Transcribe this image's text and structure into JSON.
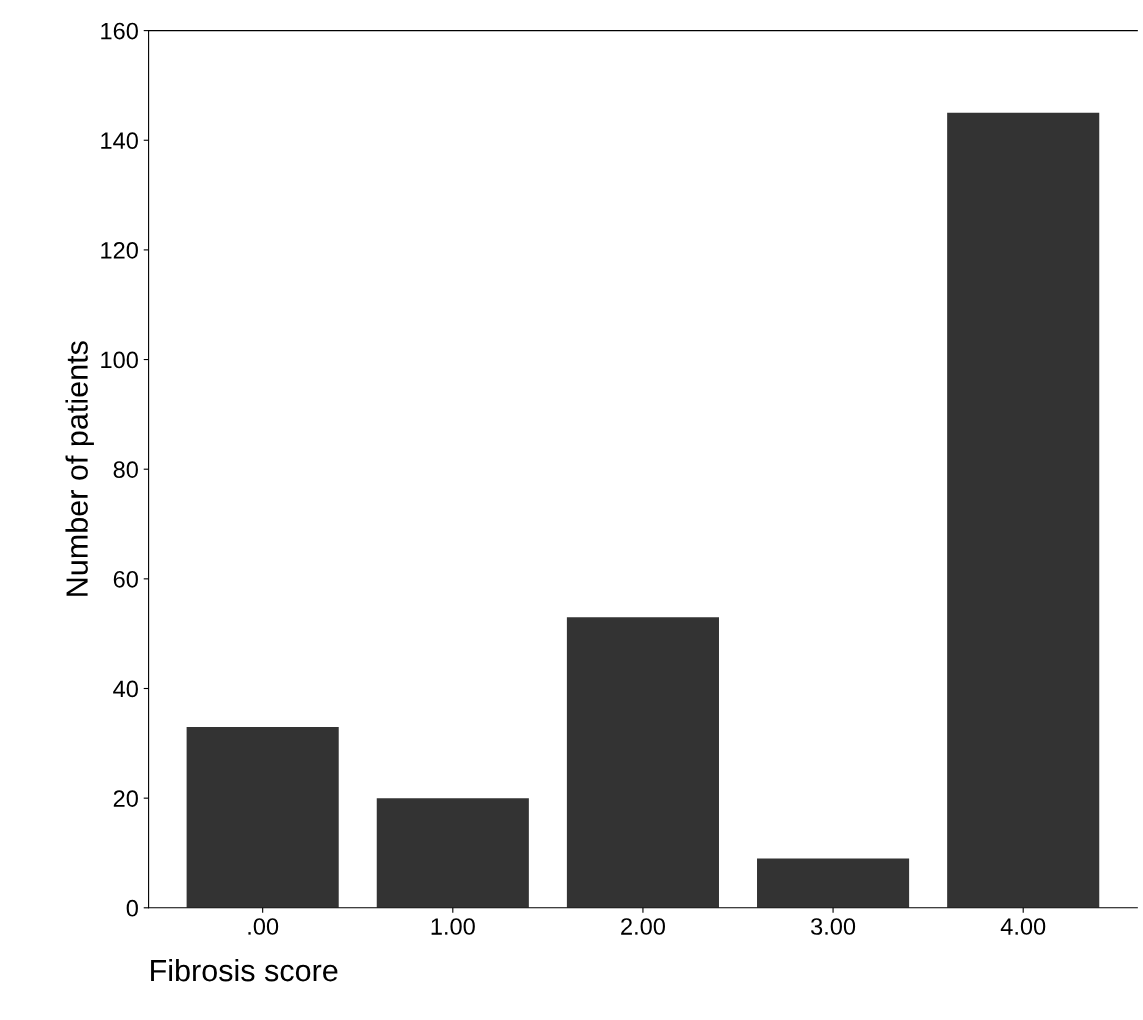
{
  "chart_data": {
    "type": "bar",
    "xlabel": "Fibrosis score",
    "ylabel": "Number of patients",
    "categories": [
      ".00",
      "1.00",
      "2.00",
      "3.00",
      "4.00"
    ],
    "values": [
      33,
      20,
      53,
      9,
      145
    ],
    "color": "#333333",
    "ylim": [
      0,
      160
    ],
    "yticks": [
      0,
      20,
      40,
      60,
      80,
      100,
      120,
      140,
      160
    ],
    "grid": false,
    "legend": false
  }
}
